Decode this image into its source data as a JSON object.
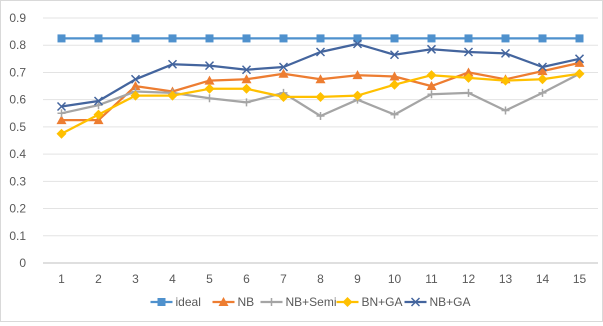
{
  "chart_data": {
    "type": "line",
    "title": "",
    "xlabel": "",
    "ylabel": "",
    "categories": [
      "1",
      "2",
      "3",
      "4",
      "5",
      "6",
      "7",
      "8",
      "9",
      "10",
      "11",
      "12",
      "13",
      "14",
      "15"
    ],
    "ylim": [
      0,
      0.9
    ],
    "yticks": [
      "0",
      "0.1",
      "0.2",
      "0.3",
      "0.4",
      "0.5",
      "0.6",
      "0.7",
      "0.8",
      "0.9"
    ],
    "grid": true,
    "legend_position": "bottom",
    "series": [
      {
        "name": "ideal",
        "color": "#4f91cd",
        "marker": "square",
        "values": [
          0.825,
          0.825,
          0.825,
          0.825,
          0.825,
          0.825,
          0.825,
          0.825,
          0.825,
          0.825,
          0.825,
          0.825,
          0.825,
          0.825,
          0.825
        ]
      },
      {
        "name": "NB",
        "color": "#ed7d31",
        "marker": "triangle",
        "values": [
          0.525,
          0.525,
          0.65,
          0.63,
          0.67,
          0.675,
          0.695,
          0.675,
          0.69,
          0.685,
          0.65,
          0.7,
          0.675,
          0.705,
          0.735
        ]
      },
      {
        "name": "NB+Semi",
        "color": "#a5a5a5",
        "marker": "plus",
        "values": [
          0.55,
          0.58,
          0.63,
          0.625,
          0.605,
          0.59,
          0.625,
          0.54,
          0.6,
          0.545,
          0.62,
          0.625,
          0.56,
          0.625,
          0.695
        ]
      },
      {
        "name": "BN+GA",
        "color": "#ffc000",
        "marker": "diamond",
        "values": [
          0.475,
          0.545,
          0.615,
          0.615,
          0.64,
          0.64,
          0.61,
          0.61,
          0.615,
          0.655,
          0.69,
          0.68,
          0.67,
          0.675,
          0.695
        ]
      },
      {
        "name": "NB+GA",
        "color": "#44659e",
        "marker": "x",
        "values": [
          0.575,
          0.595,
          0.675,
          0.73,
          0.725,
          0.71,
          0.72,
          0.775,
          0.805,
          0.765,
          0.785,
          0.775,
          0.77,
          0.72,
          0.75
        ]
      }
    ]
  }
}
